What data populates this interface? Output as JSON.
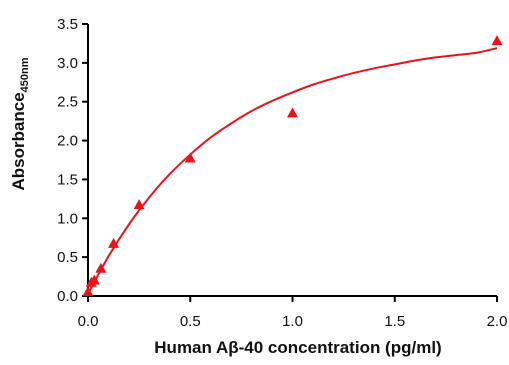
{
  "chart_data": {
    "type": "scatter",
    "title": "",
    "xlabel": "Human Aβ-40 concentration (pg/ml)",
    "ylabel": "Absorbance",
    "ylabel_subscript": "450nm",
    "xlim": [
      0,
      2.0
    ],
    "ylim": [
      0,
      3.5
    ],
    "x_ticks": [
      "0.0",
      "0.5",
      "1.0",
      "1.5",
      "2.0"
    ],
    "y_ticks": [
      "0.0",
      "0.5",
      "1.0",
      "1.5",
      "2.0",
      "2.5",
      "3.0",
      "3.5"
    ],
    "grid": false,
    "legend": "none",
    "series": [
      {
        "marker": "triangle",
        "color": "#e8131b",
        "x": [
          0.0,
          0.016,
          0.031,
          0.063,
          0.125,
          0.25,
          0.5,
          1.0,
          2.0
        ],
        "y": [
          0.05,
          0.17,
          0.2,
          0.35,
          0.67,
          1.17,
          1.77,
          2.35,
          3.28
        ]
      }
    ],
    "fit_curve": {
      "color": "#e8131b",
      "x": [
        0.0,
        0.1,
        0.2,
        0.3,
        0.4,
        0.5,
        0.6,
        0.7,
        0.8,
        0.9,
        1.0,
        1.1,
        1.2,
        1.3,
        1.4,
        1.5,
        1.6,
        1.7,
        1.8,
        1.9,
        2.0
      ],
      "y": [
        0.03,
        0.51,
        0.92,
        1.27,
        1.57,
        1.82,
        2.04,
        2.22,
        2.38,
        2.51,
        2.62,
        2.72,
        2.8,
        2.87,
        2.93,
        2.98,
        3.03,
        3.07,
        3.1,
        3.13,
        3.19
      ]
    }
  }
}
